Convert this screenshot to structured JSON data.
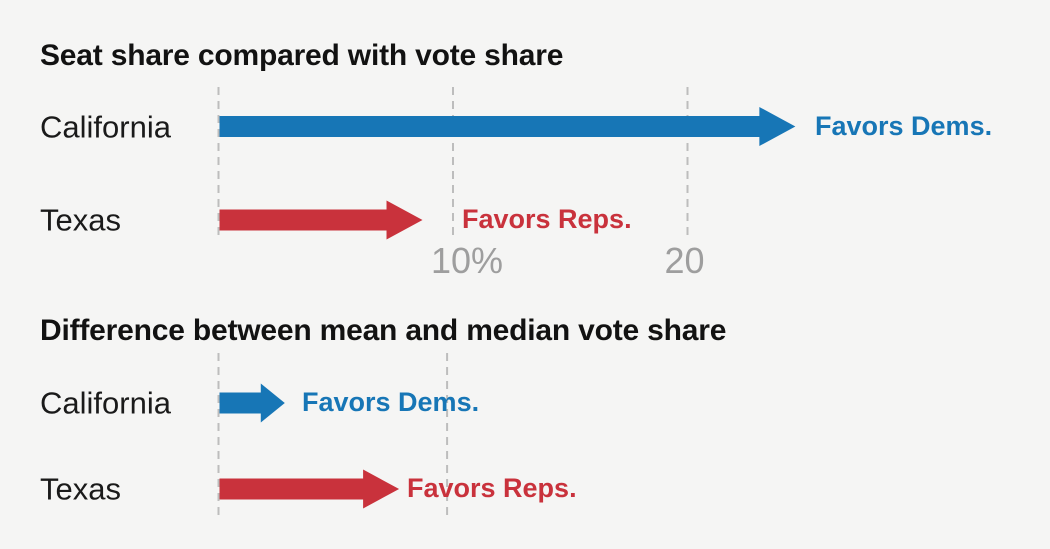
{
  "page": {
    "background": "#f5f5f4"
  },
  "colors": {
    "dem": "#1776b6",
    "rep": "#c9323c",
    "title_text": "#121212",
    "label_text": "#1a1a1a",
    "tick_text": "#9e9e9e",
    "gridline": "#bdbdbd"
  },
  "chart_data": [
    {
      "type": "bar",
      "orientation": "horizontal-arrows",
      "title": "Seat share compared with vote share",
      "categories": [
        "California",
        "Texas"
      ],
      "values": [
        24.6,
        8.7
      ],
      "unit": "%",
      "parties": [
        "dem",
        "rep"
      ],
      "annotations": [
        "Favors Dems.",
        "Favors Reps."
      ],
      "xlim": [
        0,
        25
      ],
      "axis_ticks": [
        {
          "value": 0,
          "label": ""
        },
        {
          "value": 10,
          "label": "10%"
        },
        {
          "value": 20,
          "label": "20"
        }
      ],
      "grid": "dashed-vertical",
      "legend": "none"
    },
    {
      "type": "bar",
      "orientation": "horizontal-arrows",
      "title": "Difference between mean and median vote share",
      "categories": [
        "California",
        "Texas"
      ],
      "values": [
        2.9,
        7.9
      ],
      "unit": "%",
      "parties": [
        "dem",
        "rep"
      ],
      "annotations": [
        "Favors Dems.",
        "Favors Reps."
      ],
      "xlim": [
        0,
        10
      ],
      "axis_ticks": [
        {
          "value": 0,
          "label": ""
        },
        {
          "value": 10,
          "label": ""
        }
      ],
      "grid": "dashed-vertical",
      "legend": "none"
    }
  ]
}
